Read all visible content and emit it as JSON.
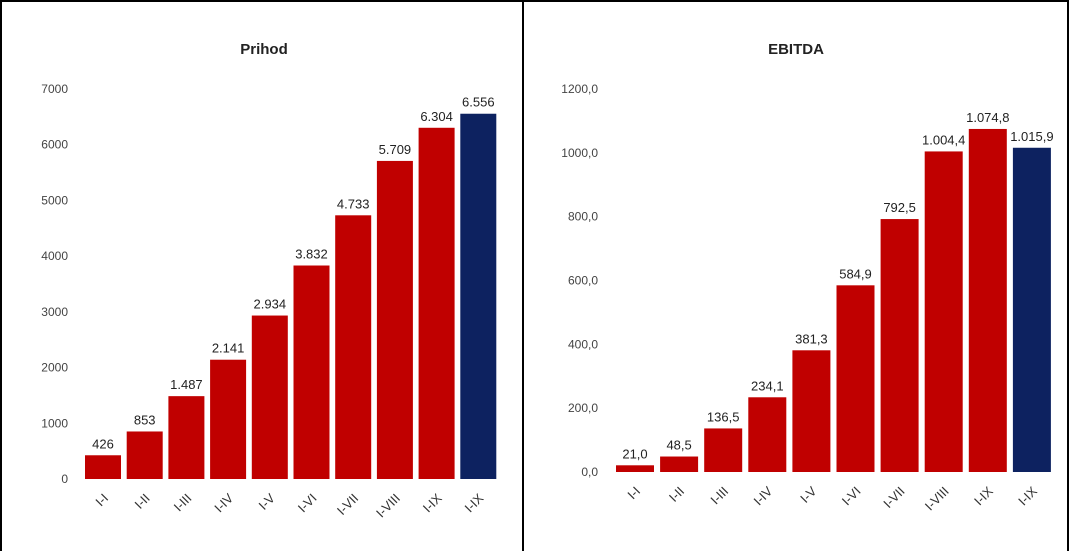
{
  "chart_data": [
    {
      "type": "bar",
      "title": "Prihod",
      "categories": [
        "I-I",
        "I-II",
        "I-III",
        "I-IV",
        "I-V",
        "I-VI",
        "I-VII",
        "I-VIII",
        "I-IX",
        "I-IX"
      ],
      "values": [
        426,
        853,
        1487,
        2141,
        2934,
        3832,
        4733,
        5709,
        6304,
        6556
      ],
      "data_labels": [
        "426",
        "853",
        "1.487",
        "2.141",
        "2.934",
        "3.832",
        "4.733",
        "5.709",
        "6.304",
        "6.556"
      ],
      "bar_colors": [
        "#c00000",
        "#c00000",
        "#c00000",
        "#c00000",
        "#c00000",
        "#c00000",
        "#c00000",
        "#c00000",
        "#c00000",
        "#0d2260"
      ],
      "yticks": [
        0,
        1000,
        2000,
        3000,
        4000,
        5000,
        6000,
        7000
      ],
      "ytick_labels": [
        "0",
        "1000",
        "2000",
        "3000",
        "4000",
        "5000",
        "6000",
        "7000"
      ],
      "ylim": [
        0,
        7000
      ],
      "xlabel": "",
      "ylabel": "",
      "grid": false,
      "legend": "none"
    },
    {
      "type": "bar",
      "title": "EBITDA",
      "categories": [
        "I-I",
        "I-II",
        "I-III",
        "I-IV",
        "I-V",
        "I-VI",
        "I-VII",
        "I-VIII",
        "I-IX",
        "I-IX"
      ],
      "values": [
        21.0,
        48.5,
        136.5,
        234.1,
        381.3,
        584.9,
        792.5,
        1004.4,
        1074.8,
        1015.9
      ],
      "data_labels": [
        "21,0",
        "48,5",
        "136,5",
        "234,1",
        "381,3",
        "584,9",
        "792,5",
        "1.004,4",
        "1.074,8",
        "1.015,9"
      ],
      "bar_colors": [
        "#c00000",
        "#c00000",
        "#c00000",
        "#c00000",
        "#c00000",
        "#c00000",
        "#c00000",
        "#c00000",
        "#c00000",
        "#0d2260"
      ],
      "yticks": [
        0,
        200,
        400,
        600,
        800,
        1000,
        1200
      ],
      "ytick_labels": [
        "0,0",
        "200,0",
        "400,0",
        "600,0",
        "800,0",
        "1000,0",
        "1200,0"
      ],
      "ylim": [
        0,
        1200
      ],
      "xlabel": "",
      "ylabel": "",
      "grid": false,
      "legend": "none"
    }
  ]
}
